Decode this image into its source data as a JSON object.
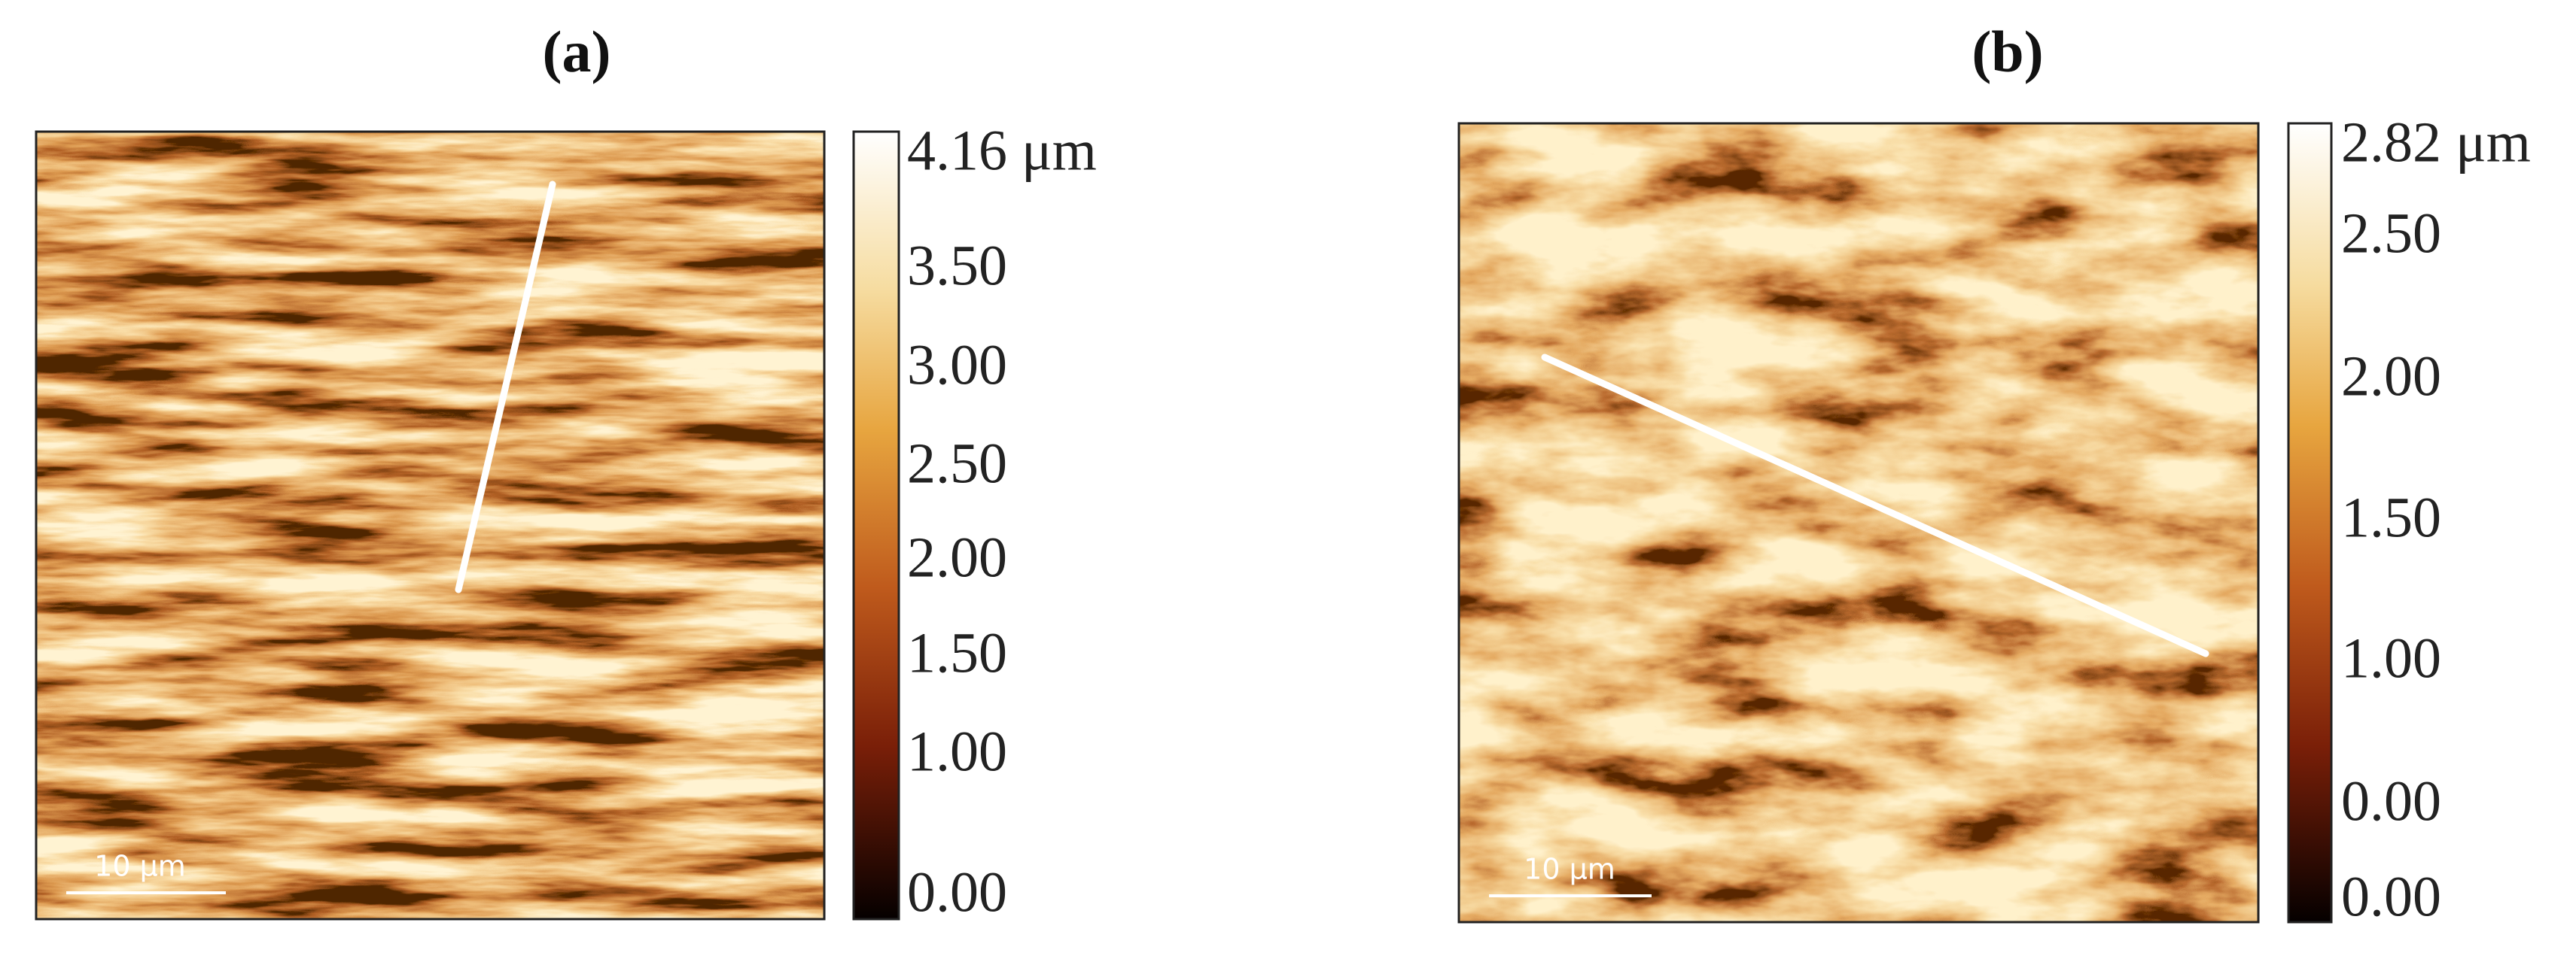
{
  "panels": [
    {
      "label": "(a)",
      "colorbar": [
        "4.16 μm",
        "3.50",
        "3.00",
        "2.50",
        "2.00",
        "1.50",
        "1.00",
        "0.00"
      ],
      "scale_bar": "10 μm"
    },
    {
      "label": "(b)",
      "colorbar": [
        "2.82 μm",
        "2.50",
        "2.00",
        "1.50",
        "1.00",
        "0.00",
        "0.00"
      ],
      "scale_bar": "10 μm"
    }
  ]
}
